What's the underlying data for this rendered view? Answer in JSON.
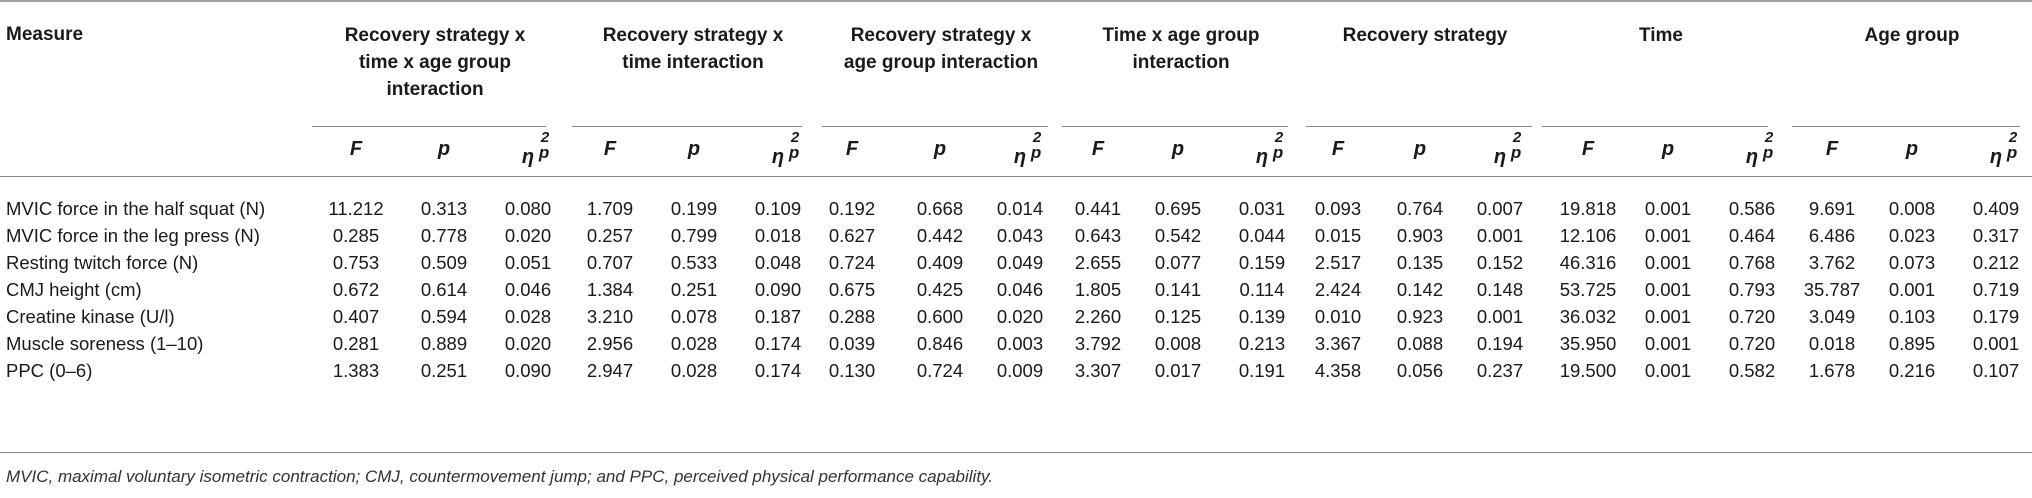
{
  "table": {
    "measure_header": "Measure",
    "groups": [
      {
        "lines": [
          "Recovery strategy x",
          "time x age group",
          "interaction"
        ]
      },
      {
        "lines": [
          "Recovery strategy x",
          "time interaction"
        ]
      },
      {
        "lines": [
          "Recovery strategy x",
          "age group interaction"
        ]
      },
      {
        "lines": [
          "Time x age group",
          "interaction"
        ]
      },
      {
        "lines": [
          "Recovery strategy"
        ]
      },
      {
        "lines": [
          "Time"
        ]
      },
      {
        "lines": [
          "Age group"
        ]
      }
    ],
    "sub_headers": {
      "f": "F",
      "p": "p",
      "eta": "η",
      "eta_sub": "p",
      "eta_sup": "2"
    },
    "rows": [
      {
        "label": "MVIC force in the half squat (N)",
        "values": [
          "11.212",
          "0.313",
          "0.080",
          "1.709",
          "0.199",
          "0.109",
          "0.192",
          "0.668",
          "0.014",
          "0.441",
          "0.695",
          "0.031",
          "0.093",
          "0.764",
          "0.007",
          "19.818",
          "0.001",
          "0.586",
          "9.691",
          "0.008",
          "0.409"
        ]
      },
      {
        "label": "MVIC force in the leg press (N)",
        "values": [
          "0.285",
          "0.778",
          "0.020",
          "0.257",
          "0.799",
          "0.018",
          "0.627",
          "0.442",
          "0.043",
          "0.643",
          "0.542",
          "0.044",
          "0.015",
          "0.903",
          "0.001",
          "12.106",
          "0.001",
          "0.464",
          "6.486",
          "0.023",
          "0.317"
        ]
      },
      {
        "label": "Resting twitch force (N)",
        "values": [
          "0.753",
          "0.509",
          "0.051",
          "0.707",
          "0.533",
          "0.048",
          "0.724",
          "0.409",
          "0.049",
          "2.655",
          "0.077",
          "0.159",
          "2.517",
          "0.135",
          "0.152",
          "46.316",
          "0.001",
          "0.768",
          "3.762",
          "0.073",
          "0.212"
        ]
      },
      {
        "label": "CMJ height (cm)",
        "values": [
          "0.672",
          "0.614",
          "0.046",
          "1.384",
          "0.251",
          "0.090",
          "0.675",
          "0.425",
          "0.046",
          "1.805",
          "0.141",
          "0.114",
          "2.424",
          "0.142",
          "0.148",
          "53.725",
          "0.001",
          "0.793",
          "35.787",
          "0.001",
          "0.719"
        ]
      },
      {
        "label": "Creatine kinase (U/l)",
        "values": [
          "0.407",
          "0.594",
          "0.028",
          "3.210",
          "0.078",
          "0.187",
          "0.288",
          "0.600",
          "0.020",
          "2.260",
          "0.125",
          "0.139",
          "0.010",
          "0.923",
          "0.001",
          "36.032",
          "0.001",
          "0.720",
          "3.049",
          "0.103",
          "0.179"
        ]
      },
      {
        "label": "Muscle soreness (1–10)",
        "values": [
          "0.281",
          "0.889",
          "0.020",
          "2.956",
          "0.028",
          "0.174",
          "0.039",
          "0.846",
          "0.003",
          "3.792",
          "0.008",
          "0.213",
          "3.367",
          "0.088",
          "0.194",
          "35.950",
          "0.001",
          "0.720",
          "0.018",
          "0.895",
          "0.001"
        ]
      },
      {
        "label": "PPC (0–6)",
        "values": [
          "1.383",
          "0.251",
          "0.090",
          "2.947",
          "0.028",
          "0.174",
          "0.130",
          "0.724",
          "0.009",
          "3.307",
          "0.017",
          "0.191",
          "4.358",
          "0.056",
          "0.237",
          "19.500",
          "0.001",
          "0.582",
          "1.678",
          "0.216",
          "0.107"
        ]
      }
    ],
    "footnote": "MVIC, maximal voluntary isometric contraction; CMJ, countermovement jump; and PPC, perceived physical performance capability."
  }
}
